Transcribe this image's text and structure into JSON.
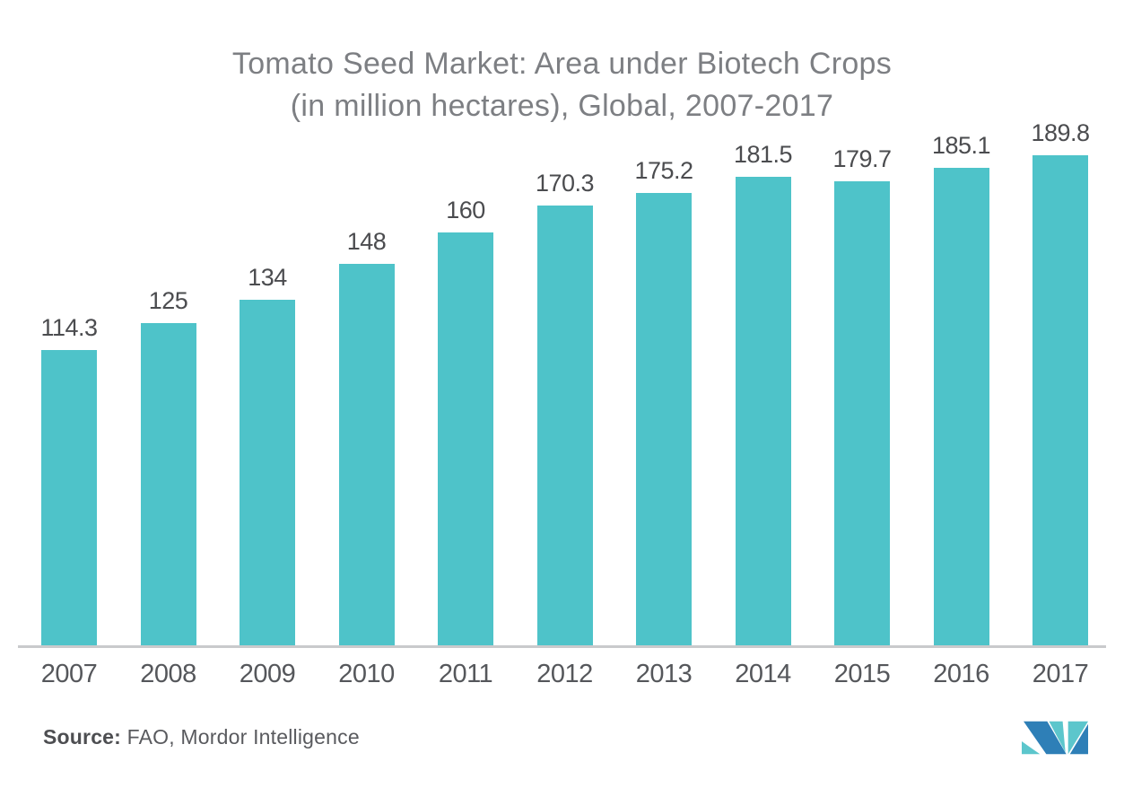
{
  "header": {
    "title_line1": "Tomato Seed Market: Area under Biotech Crops",
    "title_line2": "(in million hectares), Global, 2007-2017"
  },
  "chart_data": {
    "type": "bar",
    "title": "Tomato Seed Market: Area under Biotech Crops (in million hectares), Global, 2007-2017",
    "categories": [
      "2007",
      "2008",
      "2009",
      "2010",
      "2011",
      "2012",
      "2013",
      "2014",
      "2015",
      "2016",
      "2017"
    ],
    "values": [
      114.3,
      125,
      134,
      148,
      160,
      170.3,
      175.2,
      181.5,
      179.7,
      185.1,
      189.8
    ],
    "xlabel": "",
    "ylabel": "",
    "ylim": [
      0,
      200
    ],
    "grid": false,
    "legend": "none",
    "value_labels_shown": true,
    "bar_color": "#4ec3c9",
    "axis_line_color": "#c9cacc"
  },
  "footer": {
    "source_label": "Source:",
    "source_text": " FAO, Mordor Intelligence"
  },
  "logo": {
    "name": "Mordor Intelligence",
    "teal": "#5cc6cc",
    "blue": "#2e7fb7"
  }
}
